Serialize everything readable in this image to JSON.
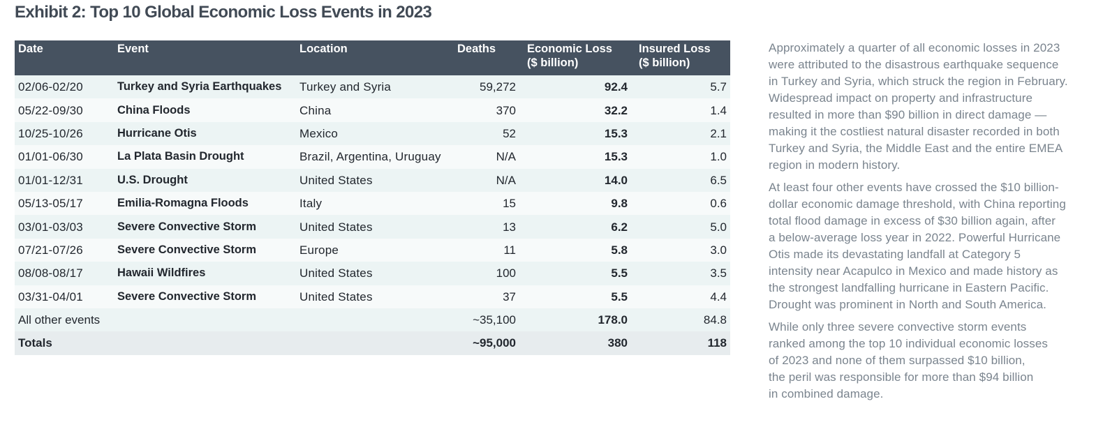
{
  "title": "Exhibit 2: Top 10 Global Economic Loss Events in 2023",
  "table": {
    "headers": {
      "date": "Date",
      "event": "Event",
      "location": "Location",
      "deaths": "Deaths",
      "economic_loss_1": "Economic Loss",
      "economic_loss_2": "($ billion)",
      "insured_loss_1": "Insured Loss",
      "insured_loss_2": "($ billion)"
    },
    "rows": [
      {
        "date": "02/06-02/20",
        "event": "Turkey and Syria Earthquakes",
        "location": "Turkey and Syria",
        "deaths": "59,272",
        "economic_loss": "92.4",
        "insured_loss": "5.7"
      },
      {
        "date": "05/22-09/30",
        "event": "China Floods",
        "location": "China",
        "deaths": "370",
        "economic_loss": "32.2",
        "insured_loss": "1.4"
      },
      {
        "date": "10/25-10/26",
        "event": "Hurricane Otis",
        "location": "Mexico",
        "deaths": "52",
        "economic_loss": "15.3",
        "insured_loss": "2.1"
      },
      {
        "date": "01/01-06/30",
        "event": "La Plata Basin Drought",
        "location": "Brazil, Argentina, Uruguay",
        "deaths": "N/A",
        "economic_loss": "15.3",
        "insured_loss": "1.0"
      },
      {
        "date": "01/01-12/31",
        "event": "U.S. Drought",
        "location": "United States",
        "deaths": "N/A",
        "economic_loss": "14.0",
        "insured_loss": "6.5"
      },
      {
        "date": "05/13-05/17",
        "event": "Emilia-Romagna Floods",
        "location": "Italy",
        "deaths": "15",
        "economic_loss": "9.8",
        "insured_loss": "0.6"
      },
      {
        "date": "03/01-03/03",
        "event": "Severe Convective Storm",
        "location": "United States",
        "deaths": "13",
        "economic_loss": "6.2",
        "insured_loss": "5.0"
      },
      {
        "date": "07/21-07/26",
        "event": "Severe Convective Storm",
        "location": "Europe",
        "deaths": "11",
        "economic_loss": "5.8",
        "insured_loss": "3.0"
      },
      {
        "date": "08/08-08/17",
        "event": "Hawaii Wildfires",
        "location": "United States",
        "deaths": "100",
        "economic_loss": "5.5",
        "insured_loss": "3.5"
      },
      {
        "date": "03/31-04/01",
        "event": "Severe Convective Storm",
        "location": "United States",
        "deaths": "37",
        "economic_loss": "5.5",
        "insured_loss": "4.4"
      }
    ],
    "other": {
      "label": "All other events",
      "deaths": "~35,100",
      "economic_loss": "178.0",
      "insured_loss": "84.8"
    },
    "totals": {
      "label": "Totals",
      "deaths": "~95,000",
      "economic_loss": "380",
      "insured_loss": "118"
    }
  },
  "commentary": {
    "p1": "Approximately a quarter of all economic losses in 2023\nwere attributed to the disastrous earthquake sequence\nin Turkey and Syria, which struck the region in February.\nWidespread impact on property and infrastructure\nresulted in more than $90 billion in direct damage —\nmaking it the costliest natural disaster recorded in both\nTurkey and Syria, the Middle East and the entire EMEA\nregion in modern history.",
    "p2": "At least four other events have crossed the $10 billion-\ndollar economic damage threshold, with China reporting\ntotal flood damage in excess of $30 billion again, after\na below-average loss year in 2022. Powerful Hurricane\nOtis made its devastating landfall at Category 5\nintensity near Acapulco in Mexico and made history as\nthe strongest landfalling hurricane in Eastern Pacific.\nDrought was prominent in North and South America.",
    "p3": "While only three severe convective storm events\nranked among the top 10 individual economic losses\nof 2023 and none of them surpassed $10 billion,\nthe peril was responsible for more than $94 billion\nin combined damage."
  },
  "colors": {
    "header_bg": "#465260",
    "row_odd": "#ecf4f4",
    "row_even": "#f7fafa",
    "totals_bg": "#e7ecee",
    "title": "#414a55",
    "commentary_text": "#7a848e"
  }
}
